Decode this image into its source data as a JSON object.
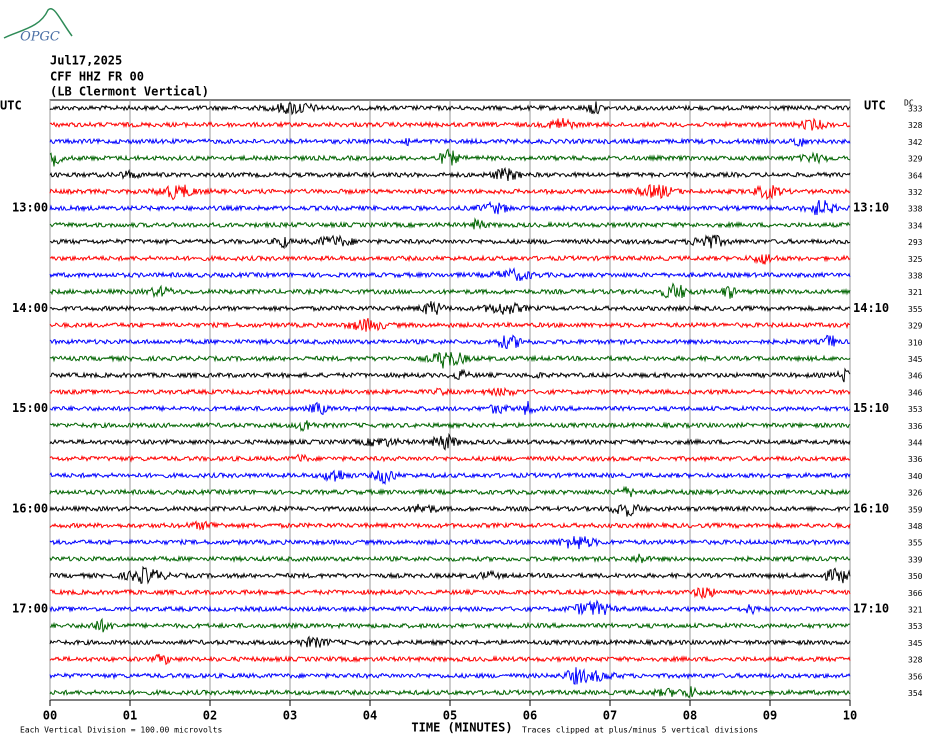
{
  "header": {
    "logo": "OPGC",
    "date": "Jul17,2025",
    "station": "CFF HHZ FR 00",
    "location": "(LB  Clermont Vertical)"
  },
  "left_title": "UTC",
  "right_title": "UTC",
  "dc_title": "DC",
  "rows": [
    {
      "left": null,
      "right": null,
      "dc": "333",
      "color": "#000000"
    },
    {
      "left": null,
      "right": null,
      "dc": "328",
      "color": "#ff0000"
    },
    {
      "left": null,
      "right": null,
      "dc": "342",
      "color": "#0000ff"
    },
    {
      "left": null,
      "right": null,
      "dc": "329",
      "color": "#006400"
    },
    {
      "left": null,
      "right": null,
      "dc": "364",
      "color": "#000000"
    },
    {
      "left": null,
      "right": null,
      "dc": "332",
      "color": "#ff0000"
    },
    {
      "left": "13:00",
      "right": "13:10",
      "dc": "338",
      "color": "#0000ff"
    },
    {
      "left": null,
      "right": null,
      "dc": "334",
      "color": "#006400"
    },
    {
      "left": null,
      "right": null,
      "dc": "293",
      "color": "#000000"
    },
    {
      "left": null,
      "right": null,
      "dc": "325",
      "color": "#ff0000"
    },
    {
      "left": null,
      "right": null,
      "dc": "338",
      "color": "#0000ff"
    },
    {
      "left": null,
      "right": null,
      "dc": "321",
      "color": "#006400"
    },
    {
      "left": "14:00",
      "right": "14:10",
      "dc": "355",
      "color": "#000000"
    },
    {
      "left": null,
      "right": null,
      "dc": "329",
      "color": "#ff0000"
    },
    {
      "left": null,
      "right": null,
      "dc": "310",
      "color": "#0000ff"
    },
    {
      "left": null,
      "right": null,
      "dc": "345",
      "color": "#006400"
    },
    {
      "left": null,
      "right": null,
      "dc": "346",
      "color": "#000000"
    },
    {
      "left": null,
      "right": null,
      "dc": "346",
      "color": "#ff0000"
    },
    {
      "left": "15:00",
      "right": "15:10",
      "dc": "353",
      "color": "#0000ff"
    },
    {
      "left": null,
      "right": null,
      "dc": "336",
      "color": "#006400"
    },
    {
      "left": null,
      "right": null,
      "dc": "344",
      "color": "#000000"
    },
    {
      "left": null,
      "right": null,
      "dc": "336",
      "color": "#ff0000"
    },
    {
      "left": null,
      "right": null,
      "dc": "340",
      "color": "#0000ff"
    },
    {
      "left": null,
      "right": null,
      "dc": "326",
      "color": "#006400"
    },
    {
      "left": "16:00",
      "right": "16:10",
      "dc": "359",
      "color": "#000000"
    },
    {
      "left": null,
      "right": null,
      "dc": "348",
      "color": "#ff0000"
    },
    {
      "left": null,
      "right": null,
      "dc": "355",
      "color": "#0000ff"
    },
    {
      "left": null,
      "right": null,
      "dc": "339",
      "color": "#006400"
    },
    {
      "left": null,
      "right": null,
      "dc": "350",
      "color": "#000000"
    },
    {
      "left": null,
      "right": null,
      "dc": "366",
      "color": "#ff0000"
    },
    {
      "left": "17:00",
      "right": "17:10",
      "dc": "321",
      "color": "#0000ff"
    },
    {
      "left": null,
      "right": null,
      "dc": "353",
      "color": "#006400"
    },
    {
      "left": null,
      "right": null,
      "dc": "345",
      "color": "#000000"
    },
    {
      "left": null,
      "right": null,
      "dc": "328",
      "color": "#ff0000"
    },
    {
      "left": null,
      "right": null,
      "dc": "356",
      "color": "#0000ff"
    },
    {
      "left": null,
      "right": null,
      "dc": "354",
      "color": "#006400"
    }
  ],
  "x_axis": {
    "title": "TIME (MINUTES)",
    "ticks": [
      "00",
      "01",
      "02",
      "03",
      "04",
      "05",
      "06",
      "07",
      "08",
      "09",
      "10"
    ]
  },
  "footer": {
    "scale_note": "Each Vertical Division =  100.00 microvolts",
    "clip_note": "Traces clipped at plus/minus 5 vertical divisions"
  }
}
